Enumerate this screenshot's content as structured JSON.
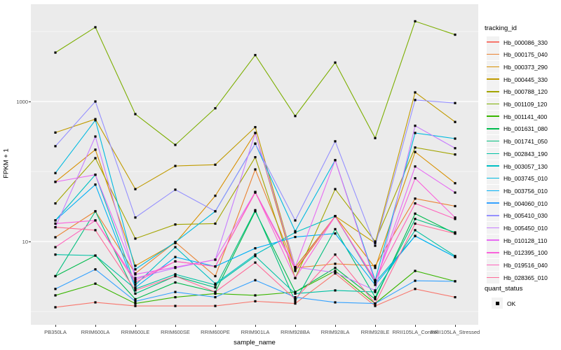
{
  "axes": {
    "y_title": "FPKM + 1",
    "x_title": "sample_name",
    "y_tick_labels": [
      "1000",
      "10"
    ]
  },
  "legend": {
    "tracking_title": "tracking_id",
    "quant_title": "quant_status",
    "quant_items": [
      {
        "label": "OK"
      }
    ]
  },
  "chart_data": {
    "type": "line",
    "title": "",
    "xlabel": "sample_name",
    "ylabel": "FPKM + 1",
    "y_scale": "log10",
    "ylim": [
      1,
      20000
    ],
    "y_major_gridlines": [
      10,
      1000
    ],
    "y_minor_gridlines": [
      1,
      100,
      10000
    ],
    "grid": true,
    "legend_position": "right",
    "legend_title": "tracking_id",
    "point_marker": {
      "shape": "square",
      "color": "#000000",
      "legend_label": "OK",
      "legend_group": "quant_status"
    },
    "panel_background": "#EBEBEB",
    "categories": [
      "PB350LA",
      "RRIM600LA",
      "RRIM600LE",
      "RRIM600SE",
      "RRIM600PE",
      "RRIM901LA",
      "RRIM928BA",
      "RRIM928LA",
      "RRIM928LE",
      "RRII105LA_Control",
      "RRII105LA_Stressed"
    ],
    "series": [
      {
        "name": "Hb_000086_330",
        "color": "#F8766D",
        "values": [
          1.15,
          1.35,
          1.2,
          1.2,
          1.2,
          1.4,
          1.3,
          3.5,
          1.2,
          2.1,
          1.6
        ]
      },
      {
        "name": "Hb_000175_040",
        "color": "#EA8331",
        "values": [
          11.5,
          27,
          3.5,
          9.8,
          3.2,
          107,
          4.2,
          4.8,
          4.5,
          41,
          32
        ]
      },
      {
        "name": "Hb_000373_290",
        "color": "#D89000",
        "values": [
          71,
          205,
          4.5,
          9.5,
          45,
          355,
          3.8,
          23,
          4.2,
          190,
          68
        ]
      },
      {
        "name": "Hb_000445_330",
        "color": "#C09B00",
        "values": [
          360,
          560,
          56,
          120,
          125,
          430,
          4.3,
          23,
          9.5,
          1350,
          510
        ]
      },
      {
        "name": "Hb_000788_120",
        "color": "#A3A500",
        "values": [
          35,
          155,
          11,
          17.5,
          18,
          160,
          3.0,
          56,
          10,
          220,
          175
        ]
      },
      {
        "name": "Hb_001109_120",
        "color": "#7CAE00",
        "values": [
          5000,
          11500,
          660,
          240,
          800,
          4600,
          620,
          3600,
          300,
          14000,
          9000
        ]
      },
      {
        "name": "Hb_001141_400",
        "color": "#39B600",
        "values": [
          1.7,
          2.5,
          1.3,
          1.6,
          1.8,
          1.7,
          1.9,
          3.8,
          1.3,
          3.8,
          2.7
        ]
      },
      {
        "name": "Hb_001631_080",
        "color": "#00BB4E",
        "values": [
          3.2,
          6.3,
          1.5,
          2.6,
          1.9,
          27,
          1.9,
          4.2,
          1.5,
          25,
          13
        ]
      },
      {
        "name": "Hb_001741_050",
        "color": "#00BF7D",
        "values": [
          3.2,
          27,
          1.8,
          3.2,
          2.2,
          28,
          1.4,
          15,
          1.6,
          21,
          13.5
        ]
      },
      {
        "name": "Hb_002843_190",
        "color": "#00C1A3",
        "values": [
          6.5,
          6.3,
          2.1,
          3.4,
          2.4,
          6.2,
          1.8,
          2.0,
          1.9,
          14.5,
          6.2
        ]
      },
      {
        "name": "Hb_003057_130",
        "color": "#00BFC4",
        "values": [
          20,
          90,
          2.4,
          8.3,
          2.5,
          6.5,
          13.5,
          23,
          2.6,
          12,
          6.0
        ]
      },
      {
        "name": "Hb_003745_010",
        "color": "#00BAE0",
        "values": [
          95,
          540,
          4.0,
          9.8,
          27,
          250,
          14,
          145,
          2.8,
          355,
          295
        ]
      },
      {
        "name": "Hb_003756_010",
        "color": "#00B0F6",
        "values": [
          20,
          65,
          2.2,
          6.0,
          4.4,
          8.0,
          11.6,
          13,
          2.4,
          12,
          6.0
        ]
      },
      {
        "name": "Hb_004060_010",
        "color": "#35A2FF",
        "values": [
          2.1,
          4.0,
          1.4,
          1.9,
          1.6,
          2.8,
          1.6,
          1.35,
          1.3,
          2.75,
          2.7
        ]
      },
      {
        "name": "Hb_005410_030",
        "color": "#9590FF",
        "values": [
          230,
          1000,
          22,
          55,
          27,
          250,
          20,
          270,
          8.7,
          1050,
          950
        ]
      },
      {
        "name": "Hb_005450_010",
        "color": "#C77CFF",
        "values": [
          16,
          316,
          3.0,
          4.2,
          5.5,
          355,
          4.3,
          3.6,
          2.0,
          450,
          215
        ]
      },
      {
        "name": "Hb_010128_110",
        "color": "#E76BF3",
        "values": [
          71,
          90,
          3.4,
          4.3,
          5.5,
          51,
          4.3,
          145,
          2.6,
          118,
          50
        ]
      },
      {
        "name": "Hb_012395_100",
        "color": "#FA62DB",
        "values": [
          18,
          20,
          2.8,
          5.2,
          4.4,
          51,
          3.0,
          23,
          2.7,
          80,
          22
        ]
      },
      {
        "name": "Hb_019516_040",
        "color": "#FF62BC",
        "values": [
          8.3,
          20,
          2.6,
          5.2,
          4.4,
          50,
          4.0,
          23,
          2.8,
          35,
          21
        ]
      },
      {
        "name": "Hb_028365_010",
        "color": "#FF6A98",
        "values": [
          16,
          14.5,
          2.0,
          3.2,
          1.9,
          5.0,
          1.5,
          6.5,
          1.3,
          18,
          13
        ]
      }
    ]
  }
}
